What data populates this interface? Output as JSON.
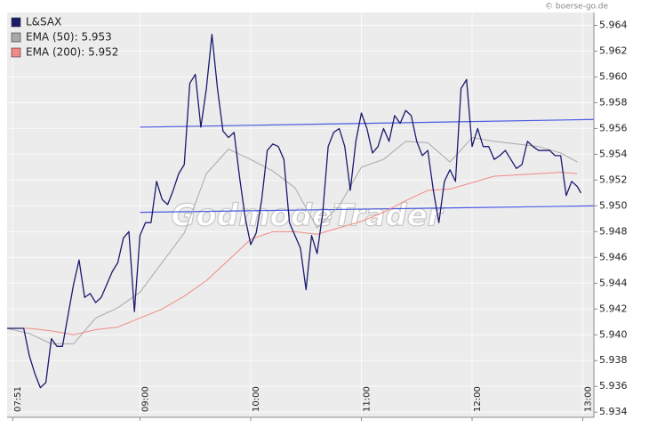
{
  "chart_data": {
    "type": "line",
    "copyright": "© boerse-go.de",
    "watermark": "GodmodeTrader",
    "legend": "upper left",
    "grid": true,
    "xlim": [
      468,
      786
    ],
    "xticks": [
      {
        "value": 471,
        "label": "07:51"
      },
      {
        "value": 540,
        "label": "09:00"
      },
      {
        "value": 600,
        "label": "10:00"
      },
      {
        "value": 660,
        "label": "11:00"
      },
      {
        "value": 720,
        "label": "12:00"
      },
      {
        "value": 780,
        "label": "13:00"
      }
    ],
    "ylim": [
      5.9336,
      5.965
    ],
    "yticks": [
      5.934,
      5.936,
      5.938,
      {
        "value": 5.94,
        "label": "5.940"
      },
      5.942,
      5.944,
      5.946,
      5.948,
      {
        "value": 5.95,
        "label": "5.950"
      },
      5.952,
      5.954,
      5.956,
      5.958,
      {
        "value": 5.96,
        "label": "5.960"
      },
      5.962,
      5.964
    ],
    "series": [
      {
        "name": "L&SAX",
        "color": "#1a1a6e",
        "x": [
          468,
          471,
          474,
          477,
          480,
          483,
          486,
          489,
          492,
          495,
          498,
          501,
          504,
          507,
          510,
          513,
          516,
          519,
          522,
          525,
          528,
          531,
          534,
          537,
          540,
          543,
          546,
          549,
          552,
          555,
          558,
          561,
          564,
          567,
          570,
          573,
          576,
          579,
          582,
          585,
          588,
          591,
          594,
          597,
          600,
          603,
          606,
          609,
          612,
          615,
          618,
          621,
          624,
          627,
          630,
          633,
          636,
          639,
          642,
          645,
          648,
          651,
          654,
          657,
          660,
          663,
          666,
          669,
          672,
          675,
          678,
          681,
          684,
          687,
          690,
          693,
          696,
          699,
          702,
          705,
          708,
          711,
          714,
          717,
          720,
          723,
          726,
          729,
          732,
          735,
          738,
          741,
          744,
          747,
          750,
          753,
          756,
          759,
          762,
          765,
          768,
          771,
          774,
          777,
          779
        ],
        "values": [
          5.9405,
          5.9405,
          5.9405,
          5.9405,
          5.9384,
          5.937,
          5.9359,
          5.9363,
          5.9397,
          5.9391,
          5.9391,
          5.9415,
          5.9439,
          5.9458,
          5.9429,
          5.9432,
          5.9425,
          5.9429,
          5.9439,
          5.9449,
          5.9456,
          5.9475,
          5.948,
          5.9418,
          5.9477,
          5.9487,
          5.9487,
          5.9519,
          5.9505,
          5.9501,
          5.9512,
          5.9525,
          5.9532,
          5.9595,
          5.9602,
          5.9561,
          5.9591,
          5.9633,
          5.9591,
          5.9558,
          5.9553,
          5.9557,
          5.9522,
          5.9491,
          5.947,
          5.9479,
          5.9505,
          5.9543,
          5.9548,
          5.9546,
          5.9536,
          5.9487,
          5.9477,
          5.9467,
          5.9435,
          5.9477,
          5.9463,
          5.9494,
          5.9546,
          5.9557,
          5.956,
          5.9546,
          5.9512,
          5.955,
          5.9572,
          5.956,
          5.9541,
          5.9546,
          5.956,
          5.955,
          5.957,
          5.9564,
          5.9574,
          5.957,
          5.955,
          5.9539,
          5.9543,
          5.9512,
          5.9487,
          5.9519,
          5.9528,
          5.9519,
          5.9591,
          5.9598,
          5.9546,
          5.956,
          5.9546,
          5.9546,
          5.9536,
          5.9539,
          5.9543,
          5.9536,
          5.9529,
          5.9532,
          5.955,
          5.9546,
          5.9543,
          5.9543,
          5.9543,
          5.9539,
          5.9539,
          5.9508,
          5.9519,
          5.9515,
          5.951
        ]
      },
      {
        "name": "EMA (50): 5.953",
        "color": "#a8a8a8",
        "x": [
          468,
          480,
          492,
          504,
          516,
          528,
          540,
          552,
          564,
          576,
          588,
          600,
          612,
          624,
          636,
          648,
          660,
          672,
          684,
          696,
          708,
          720,
          732,
          744,
          756,
          768,
          777
        ],
        "values": [
          5.9405,
          5.9401,
          5.9393,
          5.9393,
          5.9413,
          5.9421,
          5.9433,
          5.9456,
          5.9479,
          5.9525,
          5.9544,
          5.9536,
          5.9527,
          5.9514,
          5.9483,
          5.95,
          5.953,
          5.9536,
          5.955,
          5.9549,
          5.9534,
          5.9553,
          5.955,
          5.9548,
          5.9546,
          5.9541,
          5.9534
        ]
      },
      {
        "name": "EMA (200): 5.952",
        "color": "#f08a84",
        "x": [
          468,
          480,
          492,
          504,
          516,
          528,
          540,
          552,
          564,
          576,
          588,
          600,
          612,
          624,
          636,
          648,
          660,
          672,
          684,
          696,
          708,
          720,
          732,
          744,
          756,
          768,
          777
        ],
        "values": [
          5.9405,
          5.9405,
          5.9403,
          5.94,
          5.9404,
          5.9406,
          5.9413,
          5.942,
          5.943,
          5.9442,
          5.9458,
          5.9474,
          5.948,
          5.948,
          5.9478,
          5.9483,
          5.9488,
          5.9495,
          5.9504,
          5.9512,
          5.9513,
          5.9518,
          5.9523,
          5.9524,
          5.9525,
          5.9526,
          5.9525
        ]
      }
    ],
    "trend_lines": [
      {
        "color": "#4a5ae0",
        "x": [
          540,
          786
        ],
        "values": [
          5.9561,
          5.9567
        ]
      },
      {
        "color": "#4a5ae0",
        "x": [
          540,
          786
        ],
        "values": [
          5.9495,
          5.95
        ]
      }
    ]
  }
}
